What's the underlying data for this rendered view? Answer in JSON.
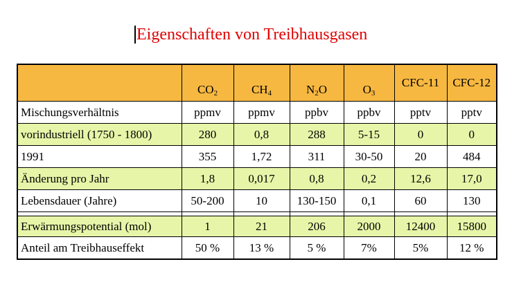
{
  "title": "Eigenschaften von Treibhausgasen",
  "colors": {
    "title": "#e00000",
    "header_bg": "#f7b841",
    "highlight_bg": "#e6f5a8"
  },
  "table": {
    "columns": [
      {
        "base": "CO",
        "sub": "2",
        "tail": ""
      },
      {
        "base": "CH",
        "sub": "4",
        "tail": ""
      },
      {
        "base": "N",
        "sub": "2",
        "tail": "O"
      },
      {
        "base": "O",
        "sub": "3",
        "tail": ""
      },
      {
        "base": "CFC-11",
        "sub": "",
        "tail": ""
      },
      {
        "base": "CFC-12",
        "sub": "",
        "tail": ""
      }
    ],
    "rows": [
      {
        "label": "Mischungsverhältnis",
        "values": [
          "ppmv",
          "ppmv",
          "ppbv",
          "ppbv",
          "pptv",
          "pptv"
        ]
      },
      {
        "label": "vorindustriell (1750 - 1800)",
        "values": [
          "280",
          "0,8",
          "288",
          "5-15",
          "0",
          "0"
        ]
      },
      {
        "label": "1991",
        "values": [
          "355",
          "1,72",
          "311",
          "30-50",
          "20",
          "484"
        ]
      },
      {
        "label": "Änderung pro Jahr",
        "values": [
          "1,8",
          "0,017",
          "0,8",
          "0,2",
          "12,6",
          "17,0"
        ]
      },
      {
        "label": "Lebensdauer (Jahre)",
        "values": [
          "50-200",
          "10",
          "130-150",
          "0,1",
          "60",
          "130"
        ]
      },
      {
        "label": "Erwärmungspotential (mol)",
        "values": [
          "1",
          "21",
          "206",
          "2000",
          "12400",
          "15800"
        ]
      },
      {
        "label": "Anteil am Treibhauseffekt",
        "values": [
          "50 %",
          "13 %",
          "5 %",
          "7%",
          "5%",
          "12 %"
        ]
      }
    ]
  }
}
